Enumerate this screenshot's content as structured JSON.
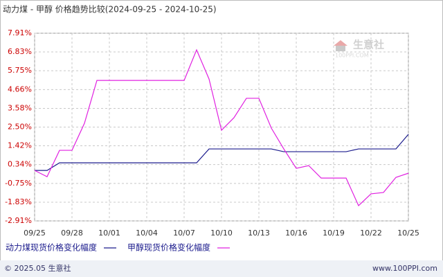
{
  "chart_data": {
    "type": "line",
    "title": "动力煤 - 甲醇 价格趋势比较(2024-09-25 - 2024-10-25)",
    "categories": [
      "09/25",
      null,
      null,
      "09/28",
      null,
      null,
      "10/01",
      null,
      null,
      "10/04",
      null,
      null,
      "10/07",
      null,
      null,
      "10/10",
      null,
      null,
      "10/13",
      null,
      null,
      "10/16",
      null,
      null,
      "10/19",
      null,
      null,
      "10/22",
      null,
      null,
      "10/25"
    ],
    "series": [
      {
        "name": "动力煤现货价格变化幅度",
        "color": "#1a1a8c",
        "values": [
          0,
          0,
          0.44,
          0.44,
          0.44,
          0.44,
          0.44,
          0.44,
          0.44,
          0.44,
          0.44,
          0.44,
          0.44,
          0.44,
          1.24,
          1.24,
          1.24,
          1.24,
          1.24,
          1.24,
          1.08,
          1.08,
          1.08,
          1.08,
          1.08,
          1.08,
          1.24,
          1.24,
          1.24,
          1.24,
          2.08
        ]
      },
      {
        "name": "甲醇现货价格变化幅度",
        "color": "#e020e0",
        "values": [
          0,
          -0.36,
          1.16,
          1.16,
          2.72,
          5.19,
          5.19,
          5.19,
          5.19,
          5.19,
          5.19,
          5.19,
          5.19,
          6.95,
          5.27,
          2.32,
          3.04,
          4.16,
          4.16,
          2.44,
          1.24,
          0.12,
          0.28,
          -0.44,
          -0.44,
          -0.44,
          -2.03,
          -1.35,
          -1.27,
          -0.4,
          -0.16
        ]
      }
    ],
    "ylim": [
      -2.91,
      7.91
    ],
    "yticks": [
      {
        "value": 7.91,
        "label": "7.91%"
      },
      {
        "value": 6.83,
        "label": "6.83%"
      },
      {
        "value": 5.75,
        "label": "5.75%"
      },
      {
        "value": 4.66,
        "label": "4.66%"
      },
      {
        "value": 3.58,
        "label": "3.58%"
      },
      {
        "value": 2.5,
        "label": "2.50%"
      },
      {
        "value": 1.42,
        "label": "1.42%"
      },
      {
        "value": 0.34,
        "label": "0.34%"
      },
      {
        "value": -0.75,
        "label": "-0.75%"
      },
      {
        "value": -1.83,
        "label": "-1.83%"
      },
      {
        "value": -2.91,
        "label": "-2.91%"
      }
    ],
    "grid": true,
    "watermark": "生意社",
    "watermark_sub": "100PPI.COM",
    "footer_left": "© 2025.05 生意社",
    "footer_right": "www.100PPI.com"
  }
}
